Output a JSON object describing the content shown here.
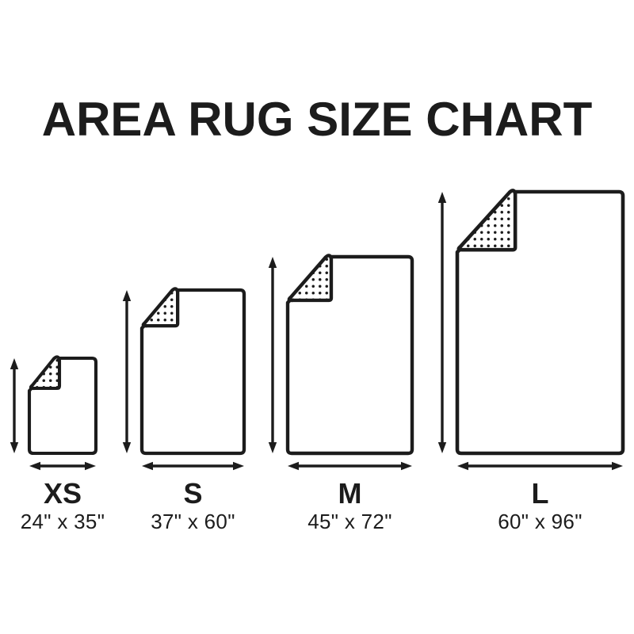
{
  "title": "AREA RUG SIZE CHART",
  "colors": {
    "ink": "#1c1c1c",
    "paper": "#ffffff"
  },
  "sizes": [
    {
      "id": "xs",
      "label": "XS",
      "dimensions": "24\" x 35\"",
      "width_in": 24,
      "height_in": 35
    },
    {
      "id": "s",
      "label": "S",
      "dimensions": "37\" x 60\"",
      "width_in": 37,
      "height_in": 60
    },
    {
      "id": "m",
      "label": "M",
      "dimensions": "45\" x 72\"",
      "width_in": 45,
      "height_in": 72
    },
    {
      "id": "l",
      "label": "L",
      "dimensions": "60\" x 96\"",
      "width_in": 60,
      "height_in": 96
    }
  ]
}
